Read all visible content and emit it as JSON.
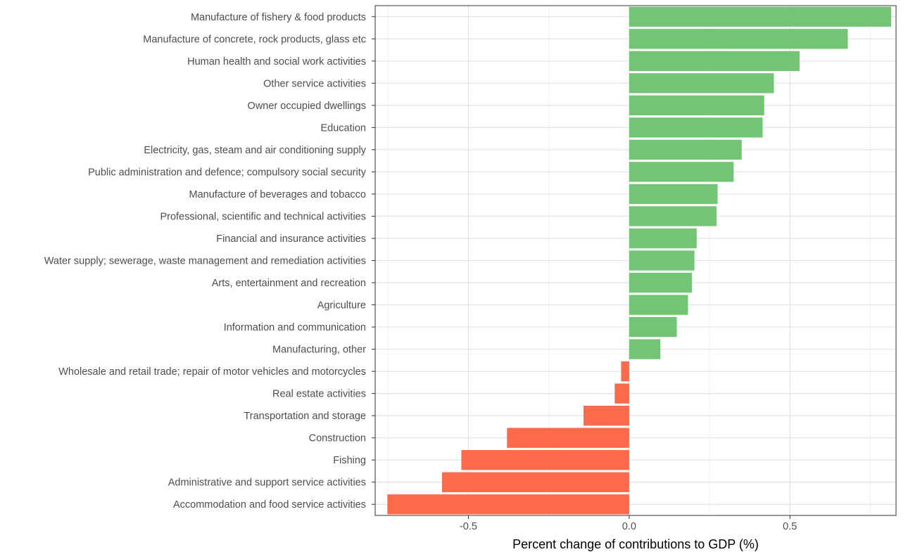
{
  "chart_data": {
    "type": "bar",
    "orientation": "horizontal",
    "title": "",
    "xlabel": "Percent change of contributions to GDP (%)",
    "ylabel": "",
    "xlim": [
      -0.79,
      0.83
    ],
    "x_ticks": [
      -0.5,
      0.0,
      0.5
    ],
    "x_tick_labels": [
      "-0.5",
      "0.0",
      "0.5"
    ],
    "grid": true,
    "legend": "none",
    "colors": {
      "positive": "#74c476",
      "negative": "#fb6a4a"
    },
    "categories": [
      "Manufacture of fishery & food products",
      "Manufacture of concrete, rock products, glass etc",
      "Human health and social work activities",
      "Other service activities",
      "Owner occupied dwellings",
      "Education",
      "Electricity, gas, steam and air conditioning supply",
      "Public administration and defence; compulsory social security",
      "Manufacture of beverages and tobacco",
      "Professional, scientific and technical activities",
      "Financial and insurance activities",
      "Water supply; sewerage, waste management and remediation activities",
      "Arts, entertainment and recreation",
      "Agriculture",
      "Information and communication",
      "Manufacturing, other",
      "Wholesale and retail trade; repair of motor vehicles and motorcycles",
      "Real estate activities",
      "Transportation and storage",
      "Construction",
      "Fishing",
      "Administrative and support service activities",
      "Accommodation and food service activities"
    ],
    "values": [
      0.815,
      0.68,
      0.53,
      0.45,
      0.42,
      0.415,
      0.35,
      0.325,
      0.275,
      0.272,
      0.21,
      0.203,
      0.195,
      0.183,
      0.148,
      0.097,
      -0.025,
      -0.045,
      -0.142,
      -0.38,
      -0.522,
      -0.582,
      -0.752
    ]
  }
}
